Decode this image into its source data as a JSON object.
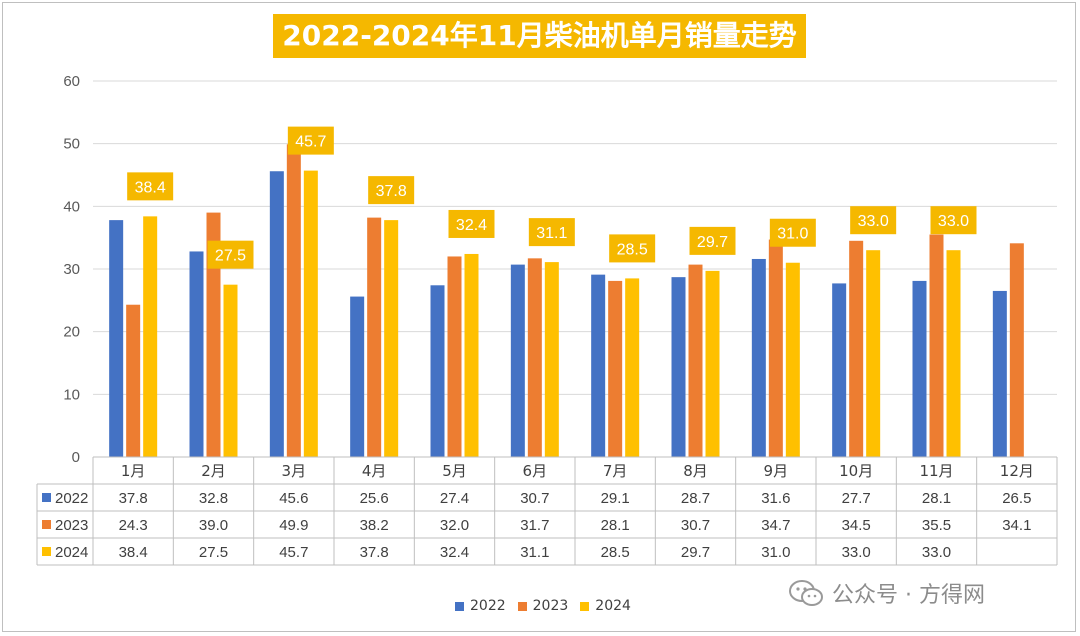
{
  "title": "2022-2024年11月柴油机单月销量走势",
  "colors": {
    "2022": "#4472c4",
    "2023": "#ed7d31",
    "2024": "#ffc000",
    "label_bg": "#f5b800"
  },
  "chart_data": {
    "type": "bar",
    "title": "2022-2024年11月柴油机单月销量走势",
    "categories": [
      "1月",
      "2月",
      "3月",
      "4月",
      "5月",
      "6月",
      "7月",
      "8月",
      "9月",
      "10月",
      "11月",
      "12月"
    ],
    "series": [
      {
        "name": "2022",
        "values": [
          37.8,
          32.8,
          45.6,
          25.6,
          27.4,
          30.7,
          29.1,
          28.7,
          31.6,
          27.7,
          28.1,
          26.5
        ]
      },
      {
        "name": "2023",
        "values": [
          24.3,
          39.0,
          49.9,
          38.2,
          32.0,
          31.7,
          28.1,
          30.7,
          34.7,
          34.5,
          35.5,
          34.1
        ]
      },
      {
        "name": "2024",
        "values": [
          38.4,
          27.5,
          45.7,
          37.8,
          32.4,
          31.1,
          28.5,
          29.7,
          31.0,
          33.0,
          33.0,
          null
        ]
      }
    ],
    "ylim": [
      0,
      60
    ],
    "yticks": [
      0,
      10,
      20,
      30,
      40,
      50,
      60
    ],
    "grid": true,
    "data_labels_series": "2024",
    "data_table": true,
    "legend": "bottom",
    "xlabel": "",
    "ylabel": ""
  },
  "legend": [
    "2022",
    "2023",
    "2024"
  ],
  "watermark": {
    "text": "公众号 · 方得网",
    "icon": "wechat-icon"
  }
}
